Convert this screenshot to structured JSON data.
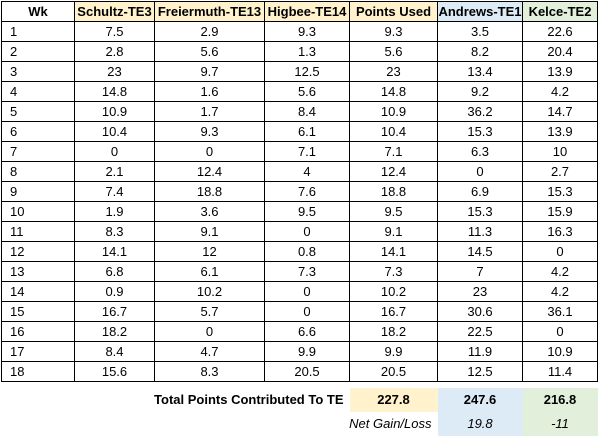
{
  "headers": [
    "Wk",
    "Schultz-TE3",
    "Freiermuth-TE13",
    "Higbee-TE14",
    "Points Used",
    "Andrews-TE1",
    "Kelce-TE2"
  ],
  "rows": [
    [
      "1",
      "7.5",
      "2.9",
      "9.3",
      "9.3",
      "3.5",
      "22.6"
    ],
    [
      "2",
      "2.8",
      "5.6",
      "1.3",
      "5.6",
      "8.2",
      "20.4"
    ],
    [
      "3",
      "23",
      "9.7",
      "12.5",
      "23",
      "13.4",
      "13.9"
    ],
    [
      "4",
      "14.8",
      "1.6",
      "5.6",
      "14.8",
      "9.2",
      "4.2"
    ],
    [
      "5",
      "10.9",
      "1.7",
      "8.4",
      "10.9",
      "36.2",
      "14.7"
    ],
    [
      "6",
      "10.4",
      "9.3",
      "6.1",
      "10.4",
      "15.3",
      "13.9"
    ],
    [
      "7",
      "0",
      "0",
      "7.1",
      "7.1",
      "6.3",
      "10"
    ],
    [
      "8",
      "2.1",
      "12.4",
      "4",
      "12.4",
      "0",
      "2.7"
    ],
    [
      "9",
      "7.4",
      "18.8",
      "7.6",
      "18.8",
      "6.9",
      "15.3"
    ],
    [
      "10",
      "1.9",
      "3.6",
      "9.5",
      "9.5",
      "15.3",
      "15.9"
    ],
    [
      "11",
      "8.3",
      "9.1",
      "0",
      "9.1",
      "11.3",
      "16.3"
    ],
    [
      "12",
      "14.1",
      "12",
      "0.8",
      "14.1",
      "14.5",
      "0"
    ],
    [
      "13",
      "6.8",
      "6.1",
      "7.3",
      "7.3",
      "7",
      "4.2"
    ],
    [
      "14",
      "0.9",
      "10.2",
      "0",
      "10.2",
      "23",
      "4.2"
    ],
    [
      "15",
      "16.7",
      "5.7",
      "0",
      "16.7",
      "30.6",
      "36.1"
    ],
    [
      "16",
      "18.2",
      "0",
      "6.6",
      "18.2",
      "22.5",
      "0"
    ],
    [
      "17",
      "8.4",
      "4.7",
      "9.9",
      "9.9",
      "11.9",
      "10.9"
    ],
    [
      "18",
      "15.6",
      "8.3",
      "20.5",
      "20.5",
      "12.5",
      "11.4"
    ]
  ],
  "totals": {
    "label": "Total Points Contributed To TE",
    "points_used": "227.8",
    "andrews": "247.6",
    "kelce": "216.8"
  },
  "net": {
    "label": "Net Gain/Loss",
    "andrews": "19.8",
    "kelce": "-11"
  },
  "colors": {
    "header_yellow": "#fff2cc",
    "header_blue": "#ddebf7",
    "header_green": "#e2efda"
  }
}
